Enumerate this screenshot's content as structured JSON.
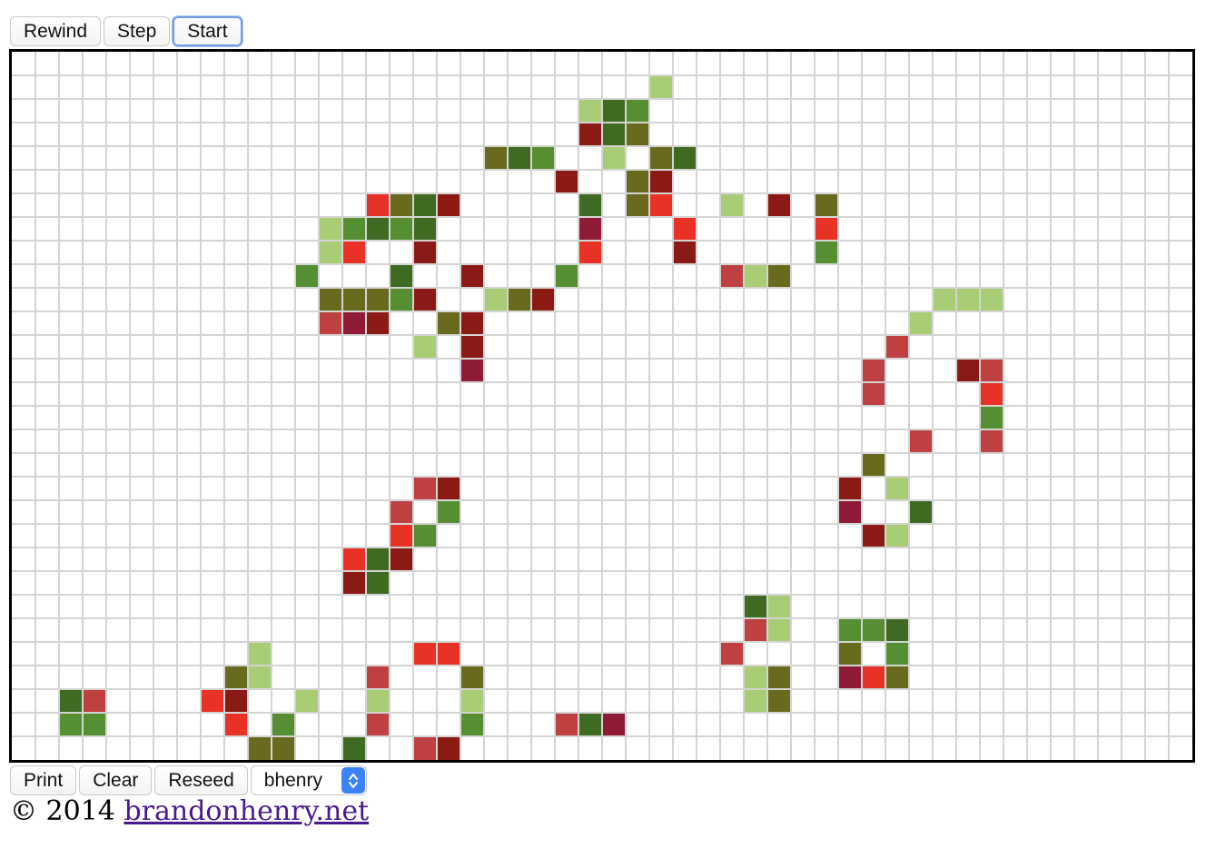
{
  "toolbar_top": {
    "rewind_label": "Rewind",
    "step_label": "Step",
    "start_label": "Start"
  },
  "toolbar_bottom": {
    "print_label": "Print",
    "clear_label": "Clear",
    "reseed_label": "Reseed",
    "seed_select": {
      "value": "bhenry",
      "options": [
        "bhenry"
      ]
    }
  },
  "footer": {
    "copyright": "© 2014",
    "link_text": "brandonhenry.net"
  },
  "board": {
    "columns": 50,
    "rows": 30,
    "palette": {
      "a": "#3f6a21",
      "b": "#558f31",
      "c": "#a8cd75",
      "d": "#6a6a1f",
      "e": "#8c1a14",
      "f": "#bf4040",
      "g": "#e83226",
      "h": "#8f1a35"
    },
    "cells": [
      [
        27,
        1,
        "c"
      ],
      [
        24,
        2,
        "c"
      ],
      [
        25,
        2,
        "a"
      ],
      [
        26,
        2,
        "b"
      ],
      [
        24,
        3,
        "e"
      ],
      [
        25,
        3,
        "a"
      ],
      [
        26,
        3,
        "d"
      ],
      [
        20,
        4,
        "d"
      ],
      [
        21,
        4,
        "a"
      ],
      [
        22,
        4,
        "b"
      ],
      [
        25,
        4,
        "c"
      ],
      [
        27,
        4,
        "d"
      ],
      [
        28,
        4,
        "a"
      ],
      [
        23,
        5,
        "e"
      ],
      [
        26,
        5,
        "d"
      ],
      [
        27,
        5,
        "e"
      ],
      [
        15,
        6,
        "g"
      ],
      [
        16,
        6,
        "d"
      ],
      [
        17,
        6,
        "a"
      ],
      [
        18,
        6,
        "e"
      ],
      [
        24,
        6,
        "a"
      ],
      [
        26,
        6,
        "d"
      ],
      [
        27,
        6,
        "g"
      ],
      [
        30,
        6,
        "c"
      ],
      [
        32,
        6,
        "e"
      ],
      [
        34,
        6,
        "d"
      ],
      [
        13,
        7,
        "c"
      ],
      [
        14,
        7,
        "b"
      ],
      [
        15,
        7,
        "a"
      ],
      [
        16,
        7,
        "b"
      ],
      [
        17,
        7,
        "a"
      ],
      [
        24,
        7,
        "h"
      ],
      [
        28,
        7,
        "g"
      ],
      [
        34,
        7,
        "g"
      ],
      [
        13,
        8,
        "c"
      ],
      [
        14,
        8,
        "g"
      ],
      [
        17,
        8,
        "e"
      ],
      [
        24,
        8,
        "g"
      ],
      [
        28,
        8,
        "e"
      ],
      [
        34,
        8,
        "b"
      ],
      [
        12,
        9,
        "b"
      ],
      [
        16,
        9,
        "a"
      ],
      [
        19,
        9,
        "e"
      ],
      [
        23,
        9,
        "b"
      ],
      [
        30,
        9,
        "f"
      ],
      [
        31,
        9,
        "c"
      ],
      [
        32,
        9,
        "d"
      ],
      [
        13,
        10,
        "d"
      ],
      [
        14,
        10,
        "d"
      ],
      [
        15,
        10,
        "d"
      ],
      [
        16,
        10,
        "b"
      ],
      [
        17,
        10,
        "e"
      ],
      [
        20,
        10,
        "c"
      ],
      [
        21,
        10,
        "d"
      ],
      [
        22,
        10,
        "e"
      ],
      [
        39,
        10,
        "c"
      ],
      [
        40,
        10,
        "c"
      ],
      [
        41,
        10,
        "c"
      ],
      [
        13,
        11,
        "f"
      ],
      [
        14,
        11,
        "h"
      ],
      [
        15,
        11,
        "e"
      ],
      [
        18,
        11,
        "d"
      ],
      [
        19,
        11,
        "e"
      ],
      [
        38,
        11,
        "c"
      ],
      [
        17,
        12,
        "c"
      ],
      [
        19,
        12,
        "e"
      ],
      [
        37,
        12,
        "f"
      ],
      [
        19,
        13,
        "h"
      ],
      [
        36,
        13,
        "f"
      ],
      [
        40,
        13,
        "e"
      ],
      [
        41,
        13,
        "f"
      ],
      [
        36,
        14,
        "f"
      ],
      [
        41,
        14,
        "g"
      ],
      [
        41,
        15,
        "b"
      ],
      [
        38,
        16,
        "f"
      ],
      [
        41,
        16,
        "f"
      ],
      [
        36,
        17,
        "d"
      ],
      [
        17,
        18,
        "f"
      ],
      [
        18,
        18,
        "e"
      ],
      [
        35,
        18,
        "e"
      ],
      [
        37,
        18,
        "c"
      ],
      [
        16,
        19,
        "f"
      ],
      [
        18,
        19,
        "b"
      ],
      [
        35,
        19,
        "h"
      ],
      [
        38,
        19,
        "a"
      ],
      [
        16,
        20,
        "g"
      ],
      [
        17,
        20,
        "b"
      ],
      [
        36,
        20,
        "e"
      ],
      [
        37,
        20,
        "c"
      ],
      [
        14,
        21,
        "g"
      ],
      [
        15,
        21,
        "a"
      ],
      [
        16,
        21,
        "e"
      ],
      [
        14,
        22,
        "e"
      ],
      [
        15,
        22,
        "a"
      ],
      [
        31,
        23,
        "a"
      ],
      [
        32,
        23,
        "c"
      ],
      [
        31,
        24,
        "f"
      ],
      [
        32,
        24,
        "c"
      ],
      [
        35,
        24,
        "b"
      ],
      [
        36,
        24,
        "b"
      ],
      [
        37,
        24,
        "a"
      ],
      [
        10,
        25,
        "c"
      ],
      [
        17,
        25,
        "g"
      ],
      [
        18,
        25,
        "g"
      ],
      [
        30,
        25,
        "f"
      ],
      [
        35,
        25,
        "d"
      ],
      [
        37,
        25,
        "b"
      ],
      [
        9,
        26,
        "d"
      ],
      [
        10,
        26,
        "c"
      ],
      [
        15,
        26,
        "f"
      ],
      [
        19,
        26,
        "d"
      ],
      [
        31,
        26,
        "c"
      ],
      [
        32,
        26,
        "d"
      ],
      [
        35,
        26,
        "h"
      ],
      [
        36,
        26,
        "g"
      ],
      [
        37,
        26,
        "d"
      ],
      [
        2,
        27,
        "a"
      ],
      [
        3,
        27,
        "f"
      ],
      [
        8,
        27,
        "g"
      ],
      [
        9,
        27,
        "e"
      ],
      [
        12,
        27,
        "c"
      ],
      [
        15,
        27,
        "c"
      ],
      [
        19,
        27,
        "c"
      ],
      [
        31,
        27,
        "c"
      ],
      [
        32,
        27,
        "d"
      ],
      [
        2,
        28,
        "b"
      ],
      [
        3,
        28,
        "b"
      ],
      [
        9,
        28,
        "g"
      ],
      [
        11,
        28,
        "b"
      ],
      [
        15,
        28,
        "f"
      ],
      [
        19,
        28,
        "b"
      ],
      [
        23,
        28,
        "f"
      ],
      [
        24,
        28,
        "a"
      ],
      [
        25,
        28,
        "h"
      ],
      [
        10,
        29,
        "d"
      ],
      [
        11,
        29,
        "d"
      ],
      [
        14,
        29,
        "a"
      ],
      [
        17,
        29,
        "f"
      ],
      [
        18,
        29,
        "e"
      ]
    ]
  }
}
